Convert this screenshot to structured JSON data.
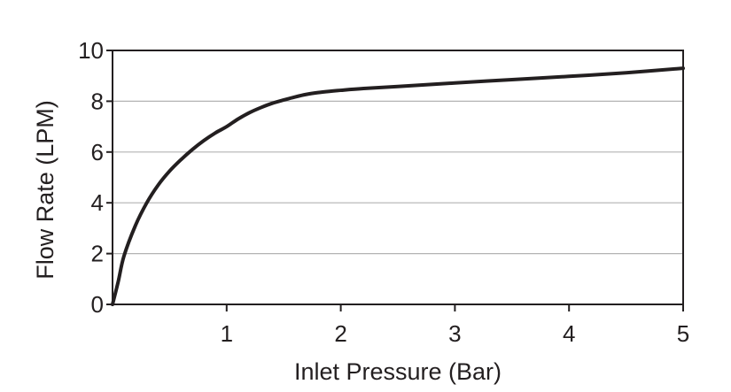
{
  "chart_data": {
    "type": "line",
    "title": "",
    "xlabel": "Inlet Pressure (Bar)",
    "ylabel": "Flow Rate (LPM)",
    "xlim": [
      0,
      5
    ],
    "ylim": [
      0,
      10
    ],
    "x_ticks": [
      "1",
      "2",
      "3",
      "4",
      "5"
    ],
    "y_ticks": [
      "0",
      "2",
      "4",
      "6",
      "8",
      "10"
    ],
    "x_tick_values": [
      1,
      2,
      3,
      4,
      5
    ],
    "y_tick_values": [
      0,
      2,
      4,
      6,
      8,
      10
    ],
    "grid": "horizontal",
    "colors": {
      "line": "#231f20",
      "grid": "#b3b3b3",
      "text": "#231f20"
    },
    "series": [
      {
        "x": [
          0,
          0.05,
          0.1,
          0.2,
          0.3,
          0.4,
          0.5,
          0.6,
          0.7,
          0.8,
          0.9,
          1.0,
          1.1,
          1.2,
          1.3,
          1.4,
          1.5,
          1.6,
          1.7,
          1.8,
          1.9,
          2.0,
          2.2,
          2.5,
          3.0,
          3.5,
          4.0,
          4.5,
          5.0
        ],
        "values": [
          0,
          0.9,
          1.9,
          3.1,
          4.0,
          4.7,
          5.25,
          5.7,
          6.1,
          6.45,
          6.75,
          7.0,
          7.3,
          7.55,
          7.75,
          7.92,
          8.05,
          8.17,
          8.27,
          8.34,
          8.39,
          8.43,
          8.5,
          8.58,
          8.72,
          8.85,
          8.98,
          9.12,
          9.3
        ]
      }
    ]
  }
}
